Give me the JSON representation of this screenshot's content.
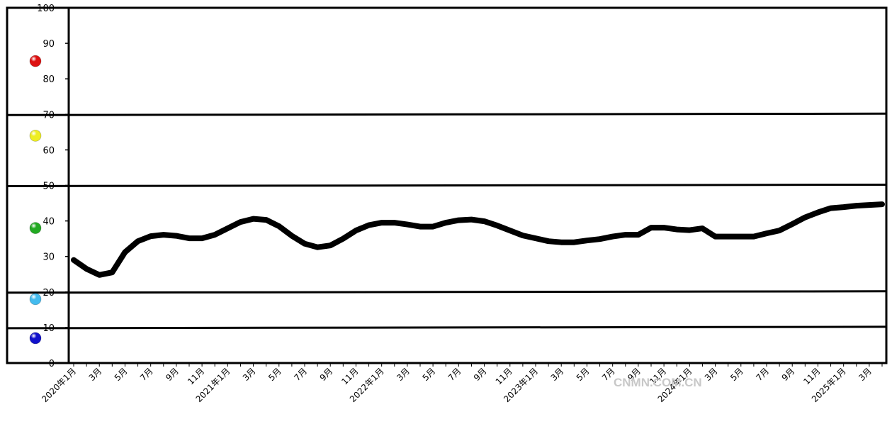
{
  "chart_data": {
    "type": "line",
    "title": "",
    "xlabel": "",
    "ylabel": "",
    "ylim": [
      0,
      100
    ],
    "y_ticks": [
      0,
      10,
      20,
      30,
      40,
      50,
      60,
      70,
      80,
      90,
      100
    ],
    "grid": false,
    "zone_boundaries": [
      10,
      20,
      50,
      70,
      100
    ],
    "zone_markers": [
      {
        "value": 85,
        "color": "#dd1111"
      },
      {
        "value": 64,
        "color": "#eeee22"
      },
      {
        "value": 38,
        "color": "#22aa22"
      },
      {
        "value": 18,
        "color": "#44bbee"
      },
      {
        "value": 7,
        "color": "#1111cc"
      }
    ],
    "x_tick_labels": [
      "2020年1月",
      "3月",
      "5月",
      "7月",
      "9月",
      "11月",
      "2021年1月",
      "3月",
      "5月",
      "7月",
      "9月",
      "11月",
      "2022年1月",
      "3月",
      "5月",
      "7月",
      "9月",
      "11月",
      "2023年1月",
      "3月",
      "5月",
      "7月",
      "9月",
      "11月",
      "2024年1月",
      "3月",
      "5月",
      "7月",
      "9月",
      "11月",
      "2025年1月",
      "3月"
    ],
    "series": [
      {
        "color": "#000000",
        "values": [
          29,
          26.5,
          24.8,
          25.5,
          31.2,
          34.3,
          35.7,
          36.1,
          35.8,
          35.1,
          35.1,
          36.1,
          37.9,
          39.7,
          40.6,
          40.3,
          38.5,
          35.8,
          33.6,
          32.6,
          33.1,
          35,
          37.3,
          38.8,
          39.5,
          39.5,
          39,
          38.4,
          38.4,
          39.5,
          40.2,
          40.4,
          39.9,
          38.7,
          37.3,
          35.9,
          35.1,
          34.3,
          34,
          34,
          34.5,
          34.9,
          35.6,
          36.1,
          36.1,
          38.1,
          38.1,
          37.6,
          37.4,
          37.9,
          35.6,
          35.6,
          35.6,
          35.6,
          36.5,
          37.3,
          39.1,
          41,
          42.4,
          43.6,
          43.9,
          44.3,
          44.5,
          44.7
        ]
      }
    ]
  },
  "watermark": "CNMN.COM.CN"
}
